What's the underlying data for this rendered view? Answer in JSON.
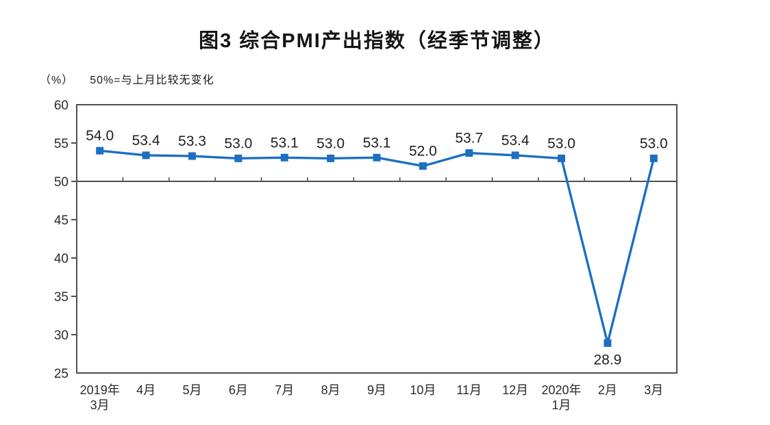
{
  "chart_data": {
    "type": "line",
    "title": "图3 综合PMI产出指数（经季节调整）",
    "unit_label": "（%）",
    "note": "50%=与上月比较无变化",
    "categories": [
      "2019年\n3月",
      "4月",
      "5月",
      "6月",
      "7月",
      "8月",
      "9月",
      "10月",
      "11月",
      "12月",
      "2020年\n1月",
      "2月",
      "3月"
    ],
    "series": [
      {
        "name": "综合PMI产出指数",
        "values": [
          54.0,
          53.4,
          53.3,
          53.0,
          53.1,
          53.0,
          53.1,
          52.0,
          53.7,
          53.4,
          53.0,
          28.9,
          53.0
        ]
      }
    ],
    "ylim": [
      25,
      60
    ],
    "yticks": [
      60,
      55,
      50,
      45,
      40,
      35,
      30,
      25
    ],
    "reference_line": 50,
    "grid": "off",
    "legend": "none",
    "colors": {
      "line": "#1c6fc2",
      "axis": "#4f4f4f",
      "label_text": "#1f1f1f",
      "tick_text": "#2b2b2b"
    }
  }
}
